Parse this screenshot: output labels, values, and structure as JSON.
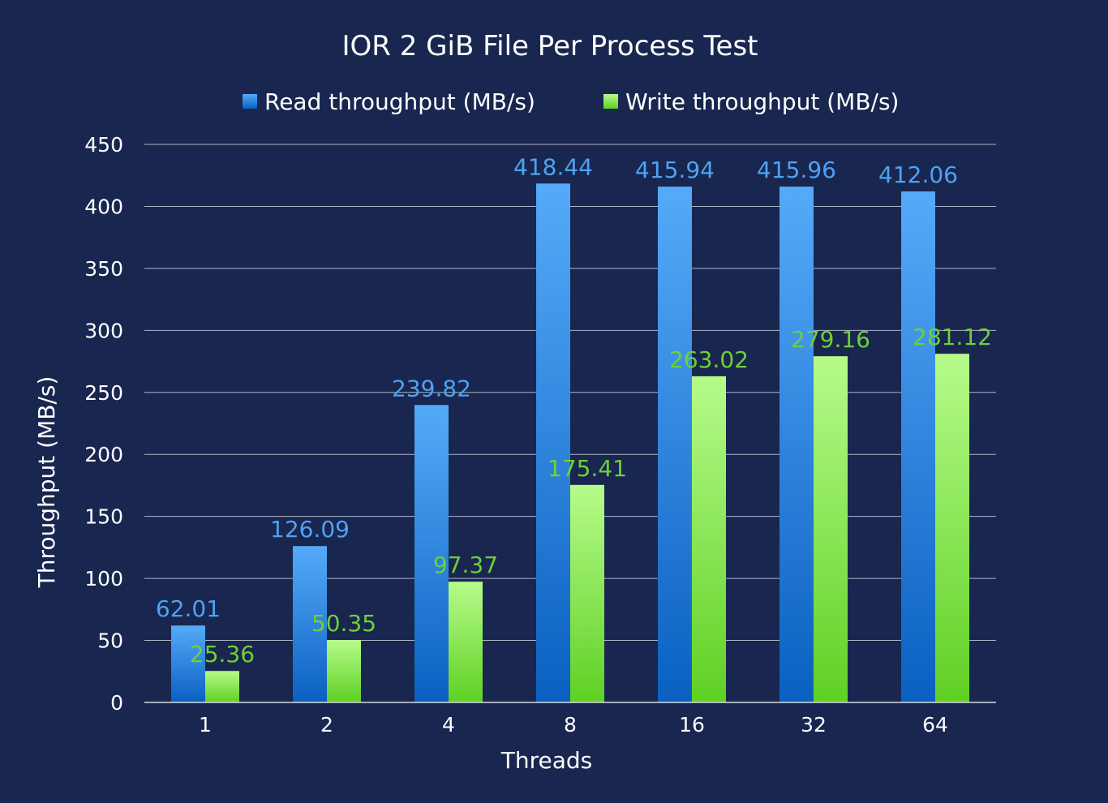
{
  "chart_data": {
    "type": "bar",
    "title": "IOR 2 GiB File Per Process Test",
    "xlabel": "Threads",
    "ylabel": "Throughput (MB/s)",
    "categories": [
      "1",
      "2",
      "4",
      "8",
      "16",
      "32",
      "64"
    ],
    "ylim": [
      0,
      450
    ],
    "yticks": [
      "0",
      "50",
      "100",
      "150",
      "200",
      "250",
      "300",
      "350",
      "400",
      "450"
    ],
    "grid": true,
    "legend_position": "top",
    "series": [
      {
        "name": "Read throughput (MB/s)",
        "values": [
          62.01,
          126.09,
          239.82,
          418.44,
          415.94,
          415.96,
          412.06
        ],
        "labels": [
          "62.01",
          "126.09",
          "239.82",
          "418.44",
          "415.94",
          "415.96",
          "412.06"
        ],
        "color_top": "#55aaf9",
        "color_bottom": "#0a60c0",
        "label_color": "#4da3f2"
      },
      {
        "name": "Write throughput (MB/s)",
        "values": [
          25.36,
          50.35,
          97.37,
          175.41,
          263.02,
          279.16,
          281.12
        ],
        "labels": [
          "25.36",
          "50.35",
          "97.37",
          "175.41",
          "263.02",
          "279.16",
          "281.12"
        ],
        "color_top": "#b6fb8a",
        "color_bottom": "#5fd024",
        "label_color": "#6fcf3a"
      }
    ]
  },
  "colors": {
    "background": "#19264f",
    "text": "#ffffff",
    "gridline": "#aeb4c4",
    "axis": "#d8dbe3"
  }
}
